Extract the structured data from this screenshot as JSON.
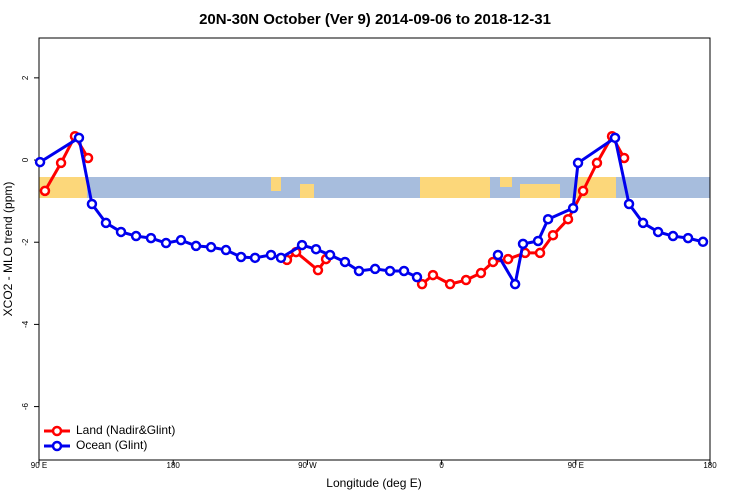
{
  "chart_data": {
    "type": "line",
    "title": "20N-30N October (Ver 9)   2014-09-06 to 2018-12-31",
    "xlabel": "Longitude (deg E)",
    "ylabel": "XCO2 - MLO trend (ppm)",
    "xlim": [
      90,
      540
    ],
    "ylim": [
      -7.3,
      2.97
    ],
    "xticks": [
      {
        "value": 90,
        "label": "90 E"
      },
      180,
      {
        "value": 270,
        "label": "90 W"
      },
      {
        "value": 360,
        "label": "0"
      },
      {
        "value": 450,
        "label": "90 E"
      },
      {
        "value": 540,
        "label": "180"
      }
    ],
    "yticks": [
      2,
      0,
      -2,
      -4,
      -6
    ],
    "legend_position": "bottom-left",
    "series": [
      {
        "name": "Land (Nadir&Glint)",
        "color": "#ff0000",
        "x": [
          94.0,
          104.8,
          114.1,
          122.9,
          null,
          256.3,
          262.4,
          277.1,
          282.5,
          null,
          346.9,
          354.2,
          365.7,
          376.4,
          386.4,
          394.5,
          404.6,
          416.0,
          426.0,
          434.7,
          444.8,
          454.9,
          464.2,
          474.3,
          482.4
        ],
        "values": [
          -0.75,
          -0.07,
          0.58,
          0.05,
          null,
          -2.43,
          -2.24,
          -2.68,
          -2.41,
          null,
          -3.02,
          -2.8,
          -3.02,
          -2.92,
          -2.75,
          -2.48,
          -2.41,
          -2.26,
          -2.26,
          -1.83,
          -1.44,
          -0.75,
          -0.07,
          0.58,
          0.05
        ]
      },
      {
        "name": "Ocean (Glint)",
        "color": "#0000ee",
        "x": [
          90.7,
          116.8,
          125.5,
          134.9,
          145.0,
          155.1,
          165.1,
          175.2,
          185.2,
          195.3,
          205.4,
          215.4,
          225.5,
          234.9,
          245.6,
          252.3,
          266.4,
          275.8,
          285.2,
          295.2,
          304.6,
          315.4,
          325.4,
          334.8,
          343.5,
          null,
          397.8,
          409.3,
          414.6,
          424.7,
          431.4,
          448.2,
          451.5,
          476.3,
          485.7,
          495.1,
          505.2,
          515.2,
          525.3,
          535.3
        ],
        "values": [
          -0.05,
          0.54,
          -1.07,
          -1.53,
          -1.75,
          -1.85,
          -1.9,
          -2.02,
          -1.95,
          -2.09,
          -2.12,
          -2.19,
          -2.36,
          -2.38,
          -2.31,
          -2.38,
          -2.07,
          -2.17,
          -2.31,
          -2.48,
          -2.7,
          -2.65,
          -2.7,
          -2.7,
          -2.85,
          null,
          -2.31,
          -3.02,
          -2.04,
          -1.97,
          -1.44,
          -1.17,
          -0.07,
          0.54,
          -1.07,
          -1.53,
          -1.75,
          -1.85,
          -1.9,
          -1.99
        ]
      }
    ]
  }
}
